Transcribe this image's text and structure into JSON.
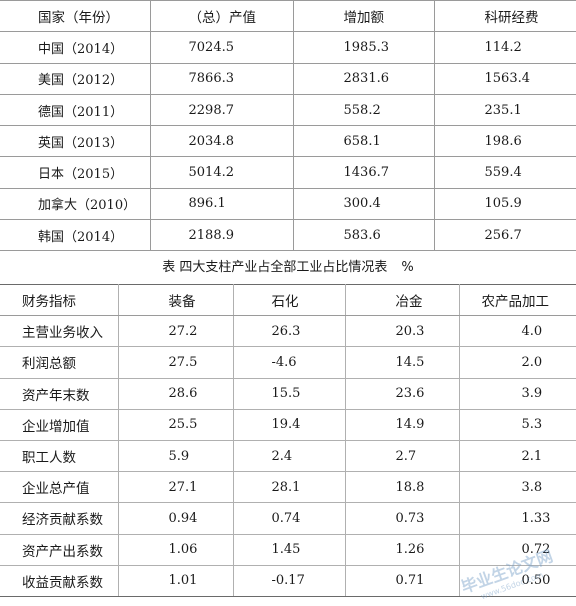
{
  "table1": {
    "headers": [
      "国家（年份）",
      "（总）产值",
      "增加额",
      "科研经费"
    ],
    "rows": [
      [
        "中国（2014）",
        "7024.5",
        "1985.3",
        "114.2"
      ],
      [
        "美国（2012）",
        "7866.3",
        "2831.6",
        "1563.4"
      ],
      [
        "德国（2011）",
        "2298.7",
        "558.2",
        "235.1"
      ],
      [
        "英国（2013）",
        "2034.8",
        "658.1",
        "198.6"
      ],
      [
        "日本（2015）",
        "5014.2",
        "1436.7",
        "559.4"
      ],
      [
        "加拿大（2010）",
        "896.1",
        "300.4",
        "105.9"
      ],
      [
        "韩国（2014）",
        "2188.9",
        "583.6",
        "256.7"
      ]
    ]
  },
  "caption": {
    "text": "表  四大支柱产业占全部工业占比情况表",
    "unit": "%"
  },
  "table2": {
    "headers": [
      "财务指标",
      "装备",
      "石化",
      "冶金",
      "农产品加工"
    ],
    "rows": [
      [
        "主营业务收入",
        "27.2",
        "26.3",
        "20.3",
        "4.0"
      ],
      [
        "利润总额",
        "27.5",
        "-4.6",
        "14.5",
        "2.0"
      ],
      [
        "资产年末数",
        "28.6",
        "15.5",
        "23.6",
        "3.9"
      ],
      [
        "企业增加值",
        "25.5",
        "19.4",
        "14.9",
        "5.3"
      ],
      [
        "职工人数",
        "5.9",
        "2.4",
        "2.7",
        "2.1"
      ],
      [
        "企业总产值",
        "27.1",
        "28.1",
        "18.8",
        "3.8"
      ],
      [
        "经济贡献系数",
        "0.94",
        "0.74",
        "0.73",
        "1.33"
      ],
      [
        "资产产出系数",
        "1.06",
        "1.45",
        "1.26",
        "0.72"
      ],
      [
        "收益贡献系数",
        "1.01",
        "-0.17",
        "0.71",
        "0.50"
      ]
    ]
  },
  "watermark": {
    "text": "毕业生论文网",
    "sub": "www.56doc.com"
  }
}
